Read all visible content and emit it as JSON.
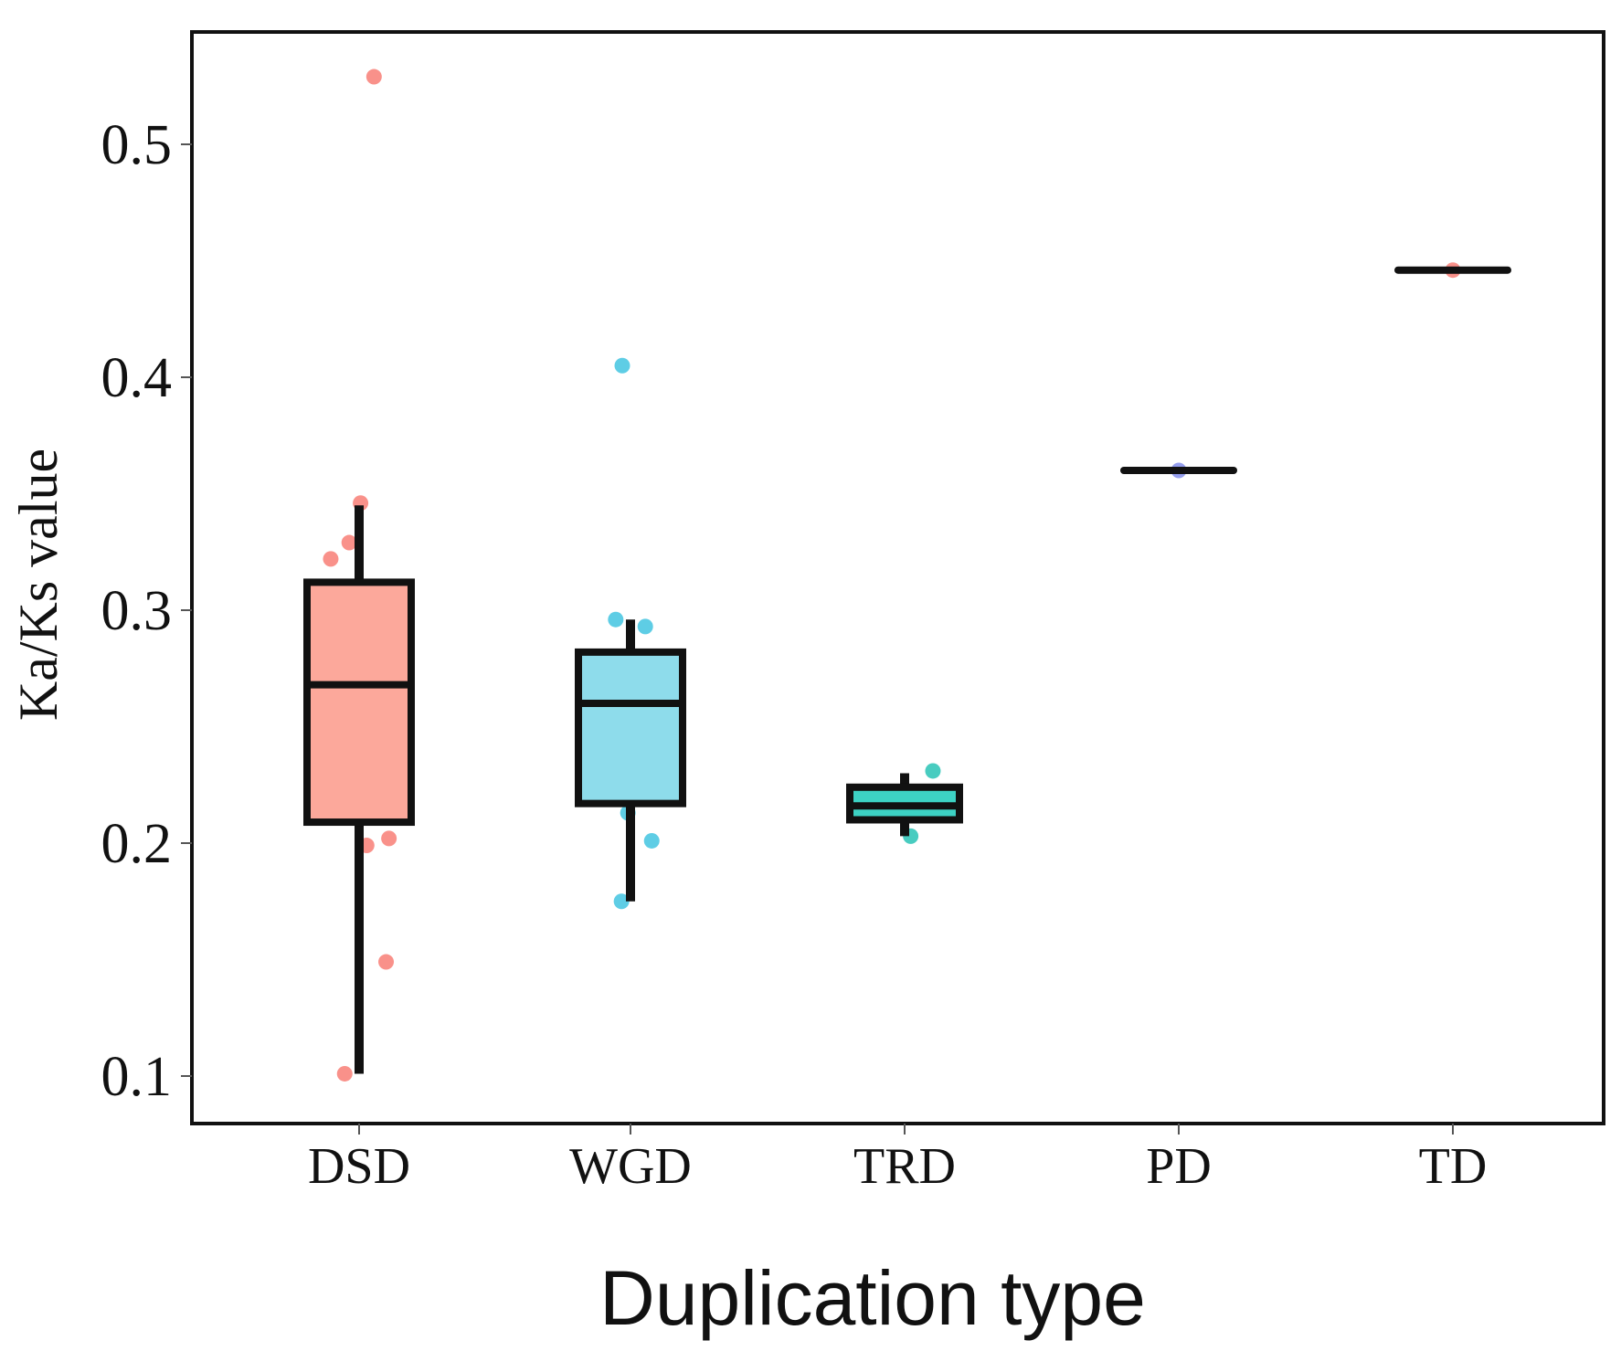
{
  "chart_data": {
    "type": "box",
    "title": "",
    "xlabel": "Duplication type",
    "ylabel": "Ka/Ks value",
    "ylim": [
      0.08,
      0.55
    ],
    "yticks": [
      0.1,
      0.2,
      0.3,
      0.4,
      0.5
    ],
    "ytick_labels": [
      "0.1",
      "0.2",
      "0.3",
      "0.4",
      "0.5"
    ],
    "grid": false,
    "legend": "none",
    "categories": [
      "DSD",
      "WGD",
      "TRD",
      "PD",
      "TD"
    ],
    "boxes": [
      {
        "category": "DSD",
        "color": "#F8766D",
        "fill": "#FCA89B",
        "whisker_low": 0.101,
        "q1": 0.209,
        "median": 0.268,
        "q3": 0.312,
        "whisker_high": 0.345,
        "points": [
          0.529,
          0.346,
          0.329,
          0.322,
          0.302,
          0.3,
          0.279,
          0.26,
          0.26,
          0.268,
          0.216,
          0.202,
          0.199,
          0.149,
          0.101
        ]
      },
      {
        "category": "WGD",
        "color": "#36C0DE",
        "fill": "#8EDCEB",
        "whisker_low": 0.175,
        "q1": 0.217,
        "median": 0.26,
        "q3": 0.282,
        "whisker_high": 0.296,
        "points": [
          0.405,
          0.296,
          0.293,
          0.27,
          0.263,
          0.26,
          0.23,
          0.222,
          0.213,
          0.201,
          0.175
        ]
      },
      {
        "category": "TRD",
        "color": "#1ABFB0",
        "fill": "#3DD2C4",
        "whisker_low": 0.203,
        "q1": 0.21,
        "median": 0.216,
        "q3": 0.224,
        "whisker_high": 0.23,
        "points": [
          0.231,
          0.203
        ]
      },
      {
        "category": "PD",
        "color": "#7A86E8",
        "fill": "#7A86E8",
        "whisker_low": 0.36,
        "q1": 0.36,
        "median": 0.36,
        "q3": 0.36,
        "whisker_high": 0.36,
        "points": [
          0.36
        ]
      },
      {
        "category": "TD",
        "color": "#F8766D",
        "fill": "#F8766D",
        "whisker_low": 0.446,
        "q1": 0.446,
        "median": 0.446,
        "q3": 0.446,
        "whisker_high": 0.446,
        "points": [
          0.446
        ]
      }
    ]
  }
}
